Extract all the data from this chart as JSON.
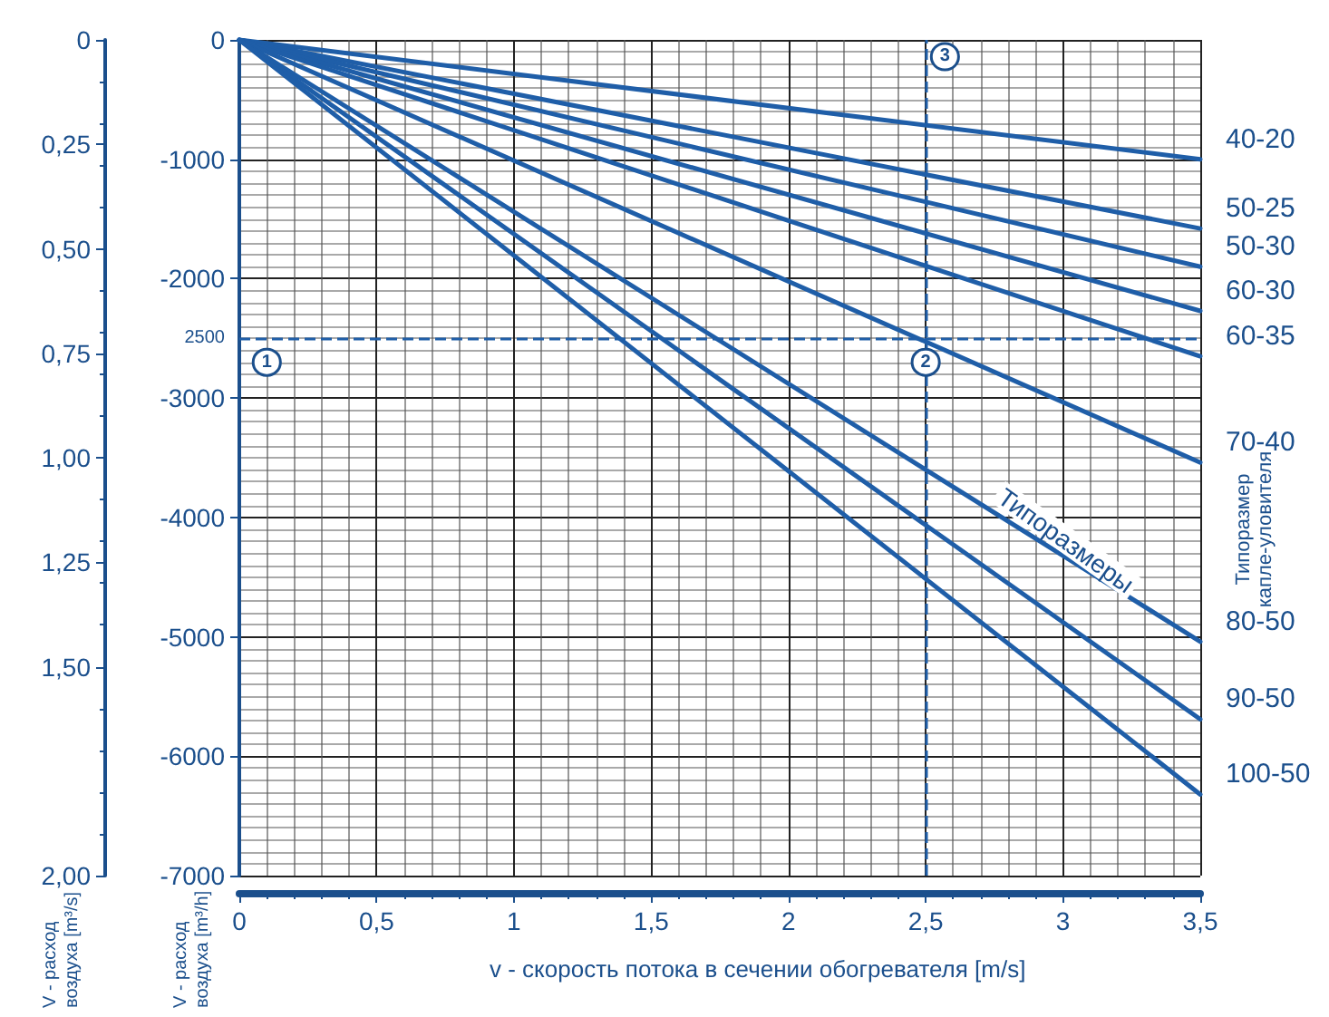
{
  "chart_data": {
    "type": "line",
    "xlabel": "v - скорость потока в сечении обогревателя [m/s]",
    "ylabel": "V - расход воздуха [m³/h]",
    "y2label": "V - расход воздуха [m³/s]",
    "x": [
      0,
      3.5
    ],
    "series": [
      {
        "name": "40-20",
        "color": "#1f5ea8",
        "values": [
          0,
          -1000
        ]
      },
      {
        "name": "50-25",
        "color": "#1f5ea8",
        "values": [
          0,
          -1580
        ]
      },
      {
        "name": "50-30",
        "color": "#1f5ea8",
        "values": [
          0,
          -1900
        ]
      },
      {
        "name": "60-30",
        "color": "#1f5ea8",
        "values": [
          0,
          -2270
        ]
      },
      {
        "name": "60-35",
        "color": "#1f5ea8",
        "values": [
          0,
          -2650
        ]
      },
      {
        "name": "70-40",
        "color": "#1f5ea8",
        "values": [
          0,
          -3540
        ]
      },
      {
        "name": "80-50",
        "color": "#1f5ea8",
        "values": [
          0,
          -5040
        ]
      },
      {
        "name": "90-50",
        "color": "#1f5ea8",
        "values": [
          0,
          -5690
        ]
      },
      {
        "name": "100-50",
        "color": "#1f5ea8",
        "values": [
          0,
          -6320
        ]
      }
    ],
    "xlim": [
      0,
      3.5
    ],
    "xticks": [
      0,
      {
        "value": 0.5,
        "label": "0,5"
      },
      1,
      {
        "value": 1.5,
        "label": "1,5"
      },
      2,
      {
        "value": 2.5,
        "label": "2,5"
      },
      3,
      {
        "value": 3.5,
        "label": "3,5"
      }
    ],
    "ylim": [
      -7000,
      0
    ],
    "yticks": [
      -7000,
      -6000,
      -5000,
      -4000,
      -3000,
      -2000,
      -1000,
      0
    ],
    "y2lim": [
      2,
      0
    ],
    "y2ticks": [
      0,
      {
        "value": 0.25,
        "label": "0,25"
      },
      {
        "value": 0.5,
        "label": "0,50"
      },
      {
        "value": 0.75,
        "label": "0,75"
      },
      {
        "value": 1,
        "label": "1,00"
      },
      {
        "value": 1.25,
        "label": "1,25"
      },
      {
        "value": 1.5,
        "label": "1,50"
      },
      {
        "value": 2,
        "label": "2,00"
      }
    ],
    "ref_lines": [
      {
        "axis": "y",
        "value": -2500,
        "line_style": "dashed",
        "color": "#1f5ea8"
      },
      {
        "axis": "x",
        "value": 2.5,
        "line_style": "dashed",
        "color": "#1f5ea8"
      }
    ],
    "annotations": [
      {
        "text": "1",
        "x": 0.1,
        "y": -2700
      },
      {
        "text": "2",
        "x": 2.5,
        "y": -2700
      },
      {
        "text": "3",
        "x": 2.57,
        "y": -140
      },
      "Типоразмеры",
      "Типоразмер капле-уловителя",
      "2500"
    ],
    "grid": true,
    "legend": false,
    "marker": "none",
    "line_style": "solid"
  }
}
